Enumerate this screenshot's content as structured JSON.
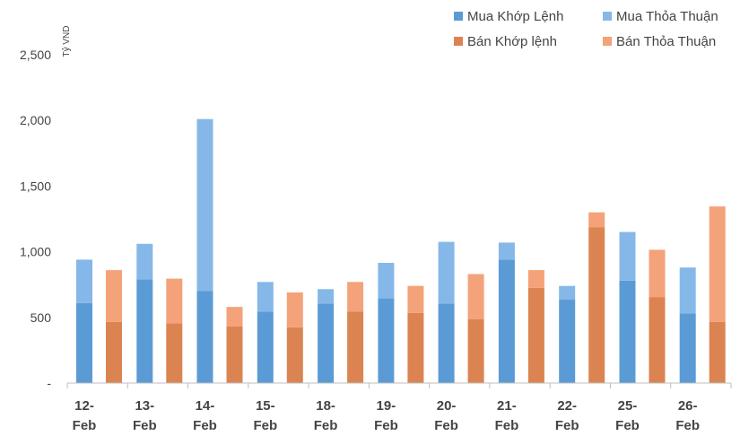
{
  "chart_data": {
    "type": "bar",
    "stacked": true,
    "ylabel": "Tỷ VND",
    "ylim": [
      0,
      2500
    ],
    "yticks": [
      0,
      500,
      1000,
      1500,
      2000,
      2500
    ],
    "ytick_labels": [
      "-",
      "500",
      "1,000",
      "1,500",
      "2,000",
      "2,500"
    ],
    "categories": [
      "12-Feb",
      "13-Feb",
      "14-Feb",
      "15-Feb",
      "18-Feb",
      "19-Feb",
      "20-Feb",
      "21-Feb",
      "22-Feb",
      "25-Feb",
      "26-Feb"
    ],
    "category_lines": [
      [
        "12-",
        "Feb"
      ],
      [
        "13-",
        "Feb"
      ],
      [
        "14-",
        "Feb"
      ],
      [
        "15-",
        "Feb"
      ],
      [
        "18-",
        "Feb"
      ],
      [
        "19-",
        "Feb"
      ],
      [
        "20-",
        "Feb"
      ],
      [
        "21-",
        "Feb"
      ],
      [
        "22-",
        "Feb"
      ],
      [
        "25-",
        "Feb"
      ],
      [
        "26-",
        "Feb"
      ]
    ],
    "legend_position": "top-right",
    "grid": false,
    "series": [
      {
        "name": "Mua Khớp Lệnh",
        "group": "Mua",
        "color": "#5B9BD5",
        "values": [
          610,
          790,
          700,
          545,
          605,
          645,
          605,
          940,
          635,
          780,
          530
        ]
      },
      {
        "name": "Mua Thỏa Thuận",
        "group": "Mua",
        "color": "#85B8E8",
        "values": [
          330,
          270,
          1310,
          225,
          110,
          270,
          470,
          130,
          105,
          370,
          350
        ]
      },
      {
        "name": "Bán Khớp lệnh",
        "group": "Bán",
        "color": "#DB8451",
        "values": [
          465,
          455,
          430,
          425,
          545,
          535,
          485,
          725,
          1185,
          655,
          465
        ]
      },
      {
        "name": "Bán Thỏa Thuận",
        "group": "Bán",
        "color": "#F4A279",
        "values": [
          395,
          340,
          150,
          265,
          225,
          205,
          345,
          135,
          115,
          360,
          880
        ]
      }
    ]
  }
}
